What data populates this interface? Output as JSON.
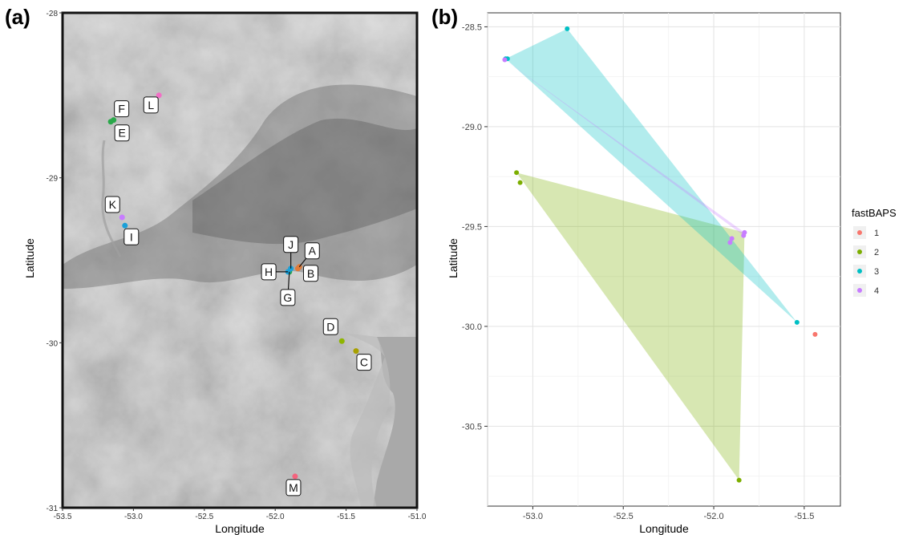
{
  "panels": {
    "a_label": "(a)",
    "b_label": "(b)"
  },
  "chart_data": [
    {
      "type": "scatter",
      "panel": "(a)",
      "description_kind": "map",
      "xlabel": "Longitude",
      "ylabel": "Latitude",
      "xlim": [
        -53.5,
        -51.0
      ],
      "ylim": [
        -31.0,
        -28.0
      ],
      "xticks": [
        -53.5,
        -53.0,
        -52.5,
        -52.0,
        -51.5,
        -51.0
      ],
      "xtick_labels": [
        "-53.5",
        "-53.0",
        "-52.5",
        "-52.0",
        "-51.5",
        "-51.0"
      ],
      "yticks": [
        -28,
        -29,
        -30,
        -31
      ],
      "ytick_labels": [
        "-28",
        "-29",
        "-30",
        "-31"
      ],
      "points": [
        {
          "label": "A",
          "x": -51.83,
          "y": -29.54,
          "color": "#e07b39"
        },
        {
          "label": "B",
          "x": -51.84,
          "y": -29.55,
          "color": "#e07b39"
        },
        {
          "label": "C",
          "x": -51.43,
          "y": -30.05,
          "color": "#a8a000"
        },
        {
          "label": "D",
          "x": -51.53,
          "y": -29.99,
          "color": "#8fb500"
        },
        {
          "label": "E",
          "x": -53.16,
          "y": -28.66,
          "color": "#2aa84a"
        },
        {
          "label": "F",
          "x": -53.14,
          "y": -28.65,
          "color": "#2aa84a"
        },
        {
          "label": "G",
          "x": -51.9,
          "y": -29.57,
          "color": "#2aa84a"
        },
        {
          "label": "H",
          "x": -51.91,
          "y": -29.57,
          "color": "#1aa0d8"
        },
        {
          "label": "I",
          "x": -53.06,
          "y": -29.29,
          "color": "#1aa0d8"
        },
        {
          "label": "J",
          "x": -51.89,
          "y": -29.55,
          "color": "#1aa0d8"
        },
        {
          "label": "K",
          "x": -53.08,
          "y": -29.24,
          "color": "#c77cff"
        },
        {
          "label": "L",
          "x": -52.82,
          "y": -28.5,
          "color": "#f26fc6"
        },
        {
          "label": "M",
          "x": -51.86,
          "y": -30.81,
          "color": "#f4637d"
        }
      ]
    },
    {
      "type": "scatter",
      "panel": "(b)",
      "xlabel": "Longitude",
      "ylabel": "Latitude",
      "xlim": [
        -53.25,
        -51.3
      ],
      "ylim": [
        -30.9,
        -28.43
      ],
      "xticks": [
        -53.0,
        -52.5,
        -52.0,
        -51.5
      ],
      "xtick_labels": [
        "-53.0",
        "-52.5",
        "-52.0",
        "-51.5"
      ],
      "yticks": [
        -28.5,
        -29.0,
        -29.5,
        -30.0,
        -30.5
      ],
      "ytick_labels": [
        "-28.5",
        "-29.0",
        "-29.5",
        "-30.0",
        "-30.5"
      ],
      "grid": true,
      "legend": {
        "title": "fastBAPS",
        "placement": "right"
      },
      "series": [
        {
          "name": "1",
          "color": "#f8766d",
          "points": [
            [
              -51.44,
              -30.04
            ]
          ]
        },
        {
          "name": "2",
          "color": "#7cae00",
          "points": [
            [
              -53.09,
              -29.23
            ],
            [
              -53.07,
              -29.28
            ],
            [
              -51.86,
              -30.77
            ]
          ]
        },
        {
          "name": "3",
          "color": "#00bfc4",
          "points": [
            [
              -53.15,
              -28.66
            ],
            [
              -53.14,
              -28.66
            ],
            [
              -52.81,
              -28.51
            ],
            [
              -51.54,
              -29.98
            ]
          ]
        },
        {
          "name": "4",
          "color": "#c77cff",
          "points": [
            [
              -53.155,
              -28.665
            ],
            [
              -51.9,
              -29.56
            ],
            [
              -51.91,
              -29.58
            ],
            [
              -51.83,
              -29.53
            ],
            [
              -51.835,
              -29.545
            ]
          ]
        }
      ],
      "hulls": [
        {
          "series": "2",
          "vertices": [
            [
              -53.09,
              -29.23
            ],
            [
              -51.86,
              -30.77
            ],
            [
              -51.83,
              -29.53
            ]
          ]
        },
        {
          "series": "3",
          "vertices": [
            [
              -53.15,
              -28.66
            ],
            [
              -52.81,
              -28.51
            ],
            [
              -51.54,
              -29.98
            ]
          ]
        },
        {
          "series": "4",
          "vertices": [
            [
              -53.155,
              -28.665
            ],
            [
              -51.83,
              -29.53
            ],
            [
              -51.835,
              -29.545
            ]
          ]
        }
      ]
    }
  ]
}
